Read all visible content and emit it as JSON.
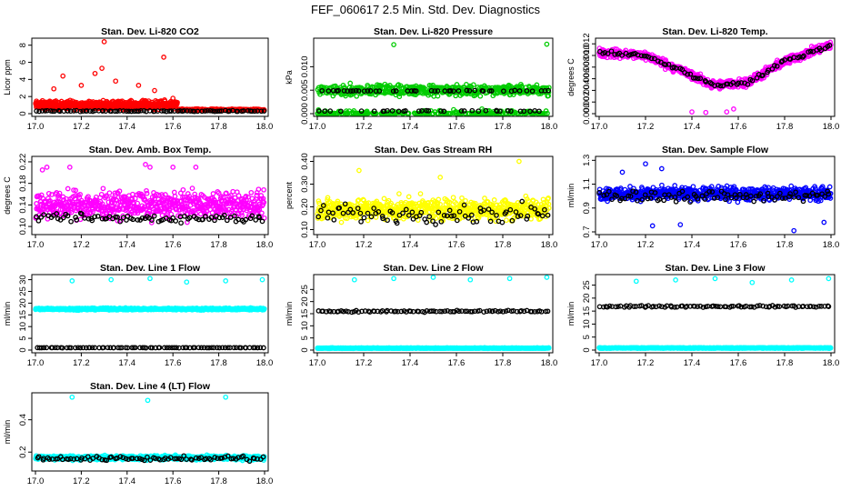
{
  "main_title": "FEF_060617  2.5 Min. Std. Dev. Diagnostics",
  "colors": {
    "black": "#000000",
    "red": "#ff0000",
    "green": "#00cc00",
    "magenta": "#ff00ff",
    "yellow": "#ffff00",
    "blue": "#0000ff",
    "cyan": "#00ffff"
  },
  "chart_data": [
    {
      "type": "scatter",
      "title": "Stan. Dev. Li-820 CO2",
      "ylabel": "Licor ppm",
      "xlim": [
        17.0,
        18.0
      ],
      "ylim": [
        0,
        8.5
      ],
      "xticks": [
        17.0,
        17.2,
        17.4,
        17.6,
        17.8,
        18.0
      ],
      "xtick_labels": [
        "17.0",
        "17.2",
        "17.4",
        "17.6",
        "17.8",
        "18.0"
      ],
      "yticks": [
        0,
        2,
        4,
        6,
        8
      ],
      "ytick_labels": [
        "0",
        "2",
        "4",
        "6",
        "8"
      ],
      "series": [
        {
          "name": "main",
          "color": "red",
          "base": 1.0,
          "spread": 0.7,
          "n": 600,
          "x_end": 17.62,
          "outliers": [
            [
              17.3,
              8.4
            ],
            [
              17.56,
              6.6
            ],
            [
              17.12,
              4.4
            ],
            [
              17.26,
              4.7
            ],
            [
              17.29,
              5.3
            ],
            [
              17.45,
              3.3
            ],
            [
              17.52,
              2.7
            ],
            [
              17.2,
              3.3
            ],
            [
              17.08,
              2.9
            ],
            [
              17.35,
              3.8
            ],
            [
              17.6,
              1.8
            ]
          ]
        },
        {
          "name": "tail",
          "color": "red",
          "base": 0.45,
          "spread": 0.15,
          "n": 200,
          "x_start": 17.62
        },
        {
          "name": "black",
          "color": "black",
          "base": 0.3,
          "spread": 0.08,
          "n": 85
        }
      ]
    },
    {
      "type": "scatter",
      "title": "Stan. Dev. Li-820 Pressure",
      "ylabel": "kPa",
      "xlim": [
        17.0,
        18.0
      ],
      "ylim": [
        0,
        0.0155
      ],
      "xticks": [
        17.0,
        17.2,
        17.4,
        17.6,
        17.8,
        18.0
      ],
      "xtick_labels": [
        "17.0",
        "17.2",
        "17.4",
        "17.6",
        "17.8",
        "18.0"
      ],
      "yticks": [
        0,
        0.005,
        0.01
      ],
      "ytick_labels": [
        "0.000",
        "0.005",
        "0.010"
      ],
      "series": [
        {
          "name": "main",
          "color": "green",
          "levels": [
            0,
            0.0045,
            0.0055
          ],
          "n": 700,
          "outliers": [
            [
              17.33,
              0.0147
            ],
            [
              17.99,
              0.0148
            ]
          ]
        },
        {
          "name": "black",
          "color": "black",
          "levels": [
            0.0005,
            0.0048
          ],
          "n": 80
        }
      ]
    },
    {
      "type": "scatter",
      "title": "Stan. Dev. Li-820 Temp.",
      "ylabel": "degrees C",
      "xlim": [
        17.0,
        18.0
      ],
      "ylim": [
        0,
        0.0125
      ],
      "xticks": [
        17.0,
        17.2,
        17.4,
        17.6,
        17.8,
        18.0
      ],
      "xtick_labels": [
        "17.0",
        "17.2",
        "17.4",
        "17.6",
        "17.8",
        "18.0"
      ],
      "yticks": [
        0,
        0.002,
        0.004,
        0.006,
        0.008,
        0.01,
        0.012
      ],
      "ytick_labels": [
        "0.000",
        "0.002",
        "0.004",
        "0.006",
        "0.008",
        "0.010",
        "0.012"
      ],
      "trend": [
        [
          17.0,
          0.0105
        ],
        [
          17.2,
          0.01
        ],
        [
          17.35,
          0.0075
        ],
        [
          17.5,
          0.0048
        ],
        [
          17.65,
          0.0055
        ],
        [
          17.8,
          0.009
        ],
        [
          18.0,
          0.0118
        ]
      ],
      "series": [
        {
          "name": "main",
          "color": "magenta",
          "spread": 0.0011,
          "n": 650,
          "outliers": [
            [
              17.4,
              0.0003
            ],
            [
              17.46,
              0.0002
            ],
            [
              17.55,
              0.0003
            ],
            [
              17.58,
              0.0008
            ]
          ]
        },
        {
          "name": "black",
          "color": "black",
          "spread": 0.0005,
          "n": 85
        }
      ]
    },
    {
      "type": "scatter",
      "title": "Stan. Dev. Amb. Box Temp.",
      "ylabel": "degrees C",
      "xlim": [
        17.0,
        18.0
      ],
      "ylim": [
        0.09,
        0.225
      ],
      "xticks": [
        17.0,
        17.2,
        17.4,
        17.6,
        17.8,
        18.0
      ],
      "xtick_labels": [
        "17.0",
        "17.2",
        "17.4",
        "17.6",
        "17.8",
        "18.0"
      ],
      "yticks": [
        0.1,
        0.14,
        0.18,
        0.22
      ],
      "ytick_labels": [
        "0.10",
        "0.14",
        "0.18",
        "0.22"
      ],
      "series": [
        {
          "name": "main",
          "color": "magenta",
          "base": 0.14,
          "spread": 0.035,
          "n": 650,
          "outliers": [
            [
              17.03,
              0.205
            ],
            [
              17.05,
              0.21
            ],
            [
              17.15,
              0.21
            ],
            [
              17.48,
              0.215
            ],
            [
              17.6,
              0.21
            ],
            [
              17.7,
              0.21
            ],
            [
              17.5,
              0.21
            ]
          ]
        },
        {
          "name": "black",
          "color": "black",
          "base": 0.115,
          "spread": 0.012,
          "n": 85
        }
      ]
    },
    {
      "type": "scatter",
      "title": "Stan. Dev. Gas Stream RH",
      "ylabel": "percent",
      "xlim": [
        17.0,
        18.0
      ],
      "ylim": [
        0.09,
        0.41
      ],
      "xticks": [
        17.0,
        17.2,
        17.4,
        17.6,
        17.8,
        18.0
      ],
      "xtick_labels": [
        "17.0",
        "17.2",
        "17.4",
        "17.6",
        "17.8",
        "18.0"
      ],
      "yticks": [
        0.1,
        0.2,
        0.3,
        0.4
      ],
      "ytick_labels": [
        "0.10",
        "0.20",
        "0.30",
        "0.40"
      ],
      "series": [
        {
          "name": "main",
          "color": "yellow",
          "base": 0.19,
          "spread": 0.07,
          "n": 650,
          "outliers": [
            [
              17.87,
              0.4
            ],
            [
              17.18,
              0.36
            ],
            [
              17.53,
              0.33
            ]
          ]
        },
        {
          "name": "black",
          "color": "black",
          "base": 0.17,
          "spread": 0.06,
          "n": 85
        }
      ]
    },
    {
      "type": "scatter",
      "title": "Stan. Dev. Sample Flow",
      "ylabel": "ml/min",
      "xlim": [
        17.0,
        18.0
      ],
      "ylim": [
        0.7,
        1.31
      ],
      "xticks": [
        17.0,
        17.2,
        17.4,
        17.6,
        17.8,
        18.0
      ],
      "xtick_labels": [
        "17.0",
        "17.2",
        "17.4",
        "17.6",
        "17.8",
        "18.0"
      ],
      "yticks": [
        0.7,
        0.9,
        1.1,
        1.3
      ],
      "ytick_labels": [
        "0.7",
        "0.9",
        "1.1",
        "1.3"
      ],
      "series": [
        {
          "name": "main",
          "color": "blue",
          "base": 1.02,
          "spread": 0.08,
          "n": 650,
          "outliers": [
            [
              17.2,
              1.27
            ],
            [
              17.27,
              1.23
            ],
            [
              17.35,
              0.76
            ],
            [
              17.84,
              0.71
            ],
            [
              17.97,
              0.78
            ],
            [
              17.23,
              0.75
            ],
            [
              17.1,
              1.2
            ]
          ]
        },
        {
          "name": "black",
          "color": "black",
          "base": 1.0,
          "spread": 0.07,
          "n": 85
        }
      ]
    },
    {
      "type": "scatter",
      "title": "Stan. Dev. Line 1 Flow",
      "ylabel": "ml/min",
      "xlim": [
        17.0,
        18.0
      ],
      "ylim": [
        0,
        31
      ],
      "xticks": [
        17.0,
        17.2,
        17.4,
        17.6,
        17.8,
        18.0
      ],
      "xtick_labels": [
        "17.0",
        "17.2",
        "17.4",
        "17.6",
        "17.8",
        "18.0"
      ],
      "yticks": [
        0,
        5,
        10,
        15,
        20,
        25,
        30
      ],
      "ytick_labels": [
        "0",
        "5",
        "10",
        "15",
        "20",
        "25",
        "30"
      ],
      "series": [
        {
          "name": "main",
          "color": "cyan",
          "base": 17.5,
          "spread": 0.6,
          "n": 700,
          "outliers": [
            [
              17.16,
              29.5
            ],
            [
              17.33,
              30.0
            ],
            [
              17.5,
              30.5
            ],
            [
              17.66,
              29.0
            ],
            [
              17.83,
              29.5
            ],
            [
              17.99,
              30.0
            ]
          ]
        },
        {
          "name": "black",
          "color": "black",
          "base": 1.0,
          "spread": 0.1,
          "n": 85
        }
      ]
    },
    {
      "type": "scatter",
      "title": "Stan. Dev. Line 2 Flow",
      "ylabel": "ml/min",
      "xlim": [
        17.0,
        18.0
      ],
      "ylim": [
        0,
        30
      ],
      "xticks": [
        17.0,
        17.2,
        17.4,
        17.6,
        17.8,
        18.0
      ],
      "xtick_labels": [
        "17.0",
        "17.2",
        "17.4",
        "17.6",
        "17.8",
        "18.0"
      ],
      "yticks": [
        0,
        5,
        10,
        15,
        20,
        25
      ],
      "ytick_labels": [
        "0",
        "5",
        "10",
        "15",
        "20",
        "25"
      ],
      "series": [
        {
          "name": "main",
          "color": "cyan",
          "base": 0.8,
          "spread": 0.2,
          "n": 700,
          "outliers": [
            [
              17.16,
              29.0
            ],
            [
              17.33,
              29.5
            ],
            [
              17.5,
              30.0
            ],
            [
              17.66,
              29.0
            ],
            [
              17.83,
              29.5
            ],
            [
              17.99,
              30.0
            ]
          ]
        },
        {
          "name": "black",
          "color": "black",
          "base": 16.0,
          "spread": 0.5,
          "n": 90
        }
      ]
    },
    {
      "type": "scatter",
      "title": "Stan. Dev. Line 3 Flow",
      "ylabel": "ml/min",
      "xlim": [
        17.0,
        18.0
      ],
      "ylim": [
        0,
        28
      ],
      "xticks": [
        17.0,
        17.2,
        17.4,
        17.6,
        17.8,
        18.0
      ],
      "xtick_labels": [
        "17.0",
        "17.2",
        "17.4",
        "17.6",
        "17.8",
        "18.0"
      ],
      "yticks": [
        0,
        5,
        10,
        15,
        20,
        25
      ],
      "ytick_labels": [
        "0",
        "5",
        "10",
        "15",
        "20",
        "25"
      ],
      "series": [
        {
          "name": "main",
          "color": "cyan",
          "base": 0.8,
          "spread": 0.2,
          "n": 700,
          "outliers": [
            [
              17.16,
              26.5
            ],
            [
              17.33,
              27.0
            ],
            [
              17.5,
              27.5
            ],
            [
              17.66,
              26.0
            ],
            [
              17.83,
              27.0
            ],
            [
              17.99,
              27.5
            ]
          ]
        },
        {
          "name": "black",
          "color": "black",
          "base": 16.8,
          "spread": 0.5,
          "n": 90
        }
      ]
    },
    {
      "type": "scatter",
      "title": "Stan. Dev. Line 4 (LT) Flow",
      "ylabel": "ml/min",
      "xlim": [
        17.0,
        18.0
      ],
      "ylim": [
        0.1,
        0.55
      ],
      "xticks": [
        17.0,
        17.2,
        17.4,
        17.6,
        17.8,
        18.0
      ],
      "xtick_labels": [
        "17.0",
        "17.2",
        "17.4",
        "17.6",
        "17.8",
        "18.0"
      ],
      "yticks": [
        0.2,
        0.4
      ],
      "ytick_labels": [
        "0.2",
        "0.4"
      ],
      "series": [
        {
          "name": "main",
          "color": "cyan",
          "base": 0.165,
          "spread": 0.02,
          "n": 700,
          "outliers": [
            [
              17.16,
              0.54
            ],
            [
              17.49,
              0.52
            ],
            [
              17.83,
              0.54
            ]
          ]
        },
        {
          "name": "black",
          "color": "black",
          "base": 0.16,
          "spread": 0.02,
          "n": 85
        }
      ]
    }
  ]
}
